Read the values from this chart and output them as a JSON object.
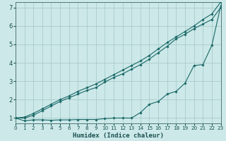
{
  "xlabel": "Humidex (Indice chaleur)",
  "background_color": "#cce8e8",
  "grid_color": "#aacccc",
  "line_color": "#1a6868",
  "x": [
    0,
    1,
    2,
    3,
    4,
    5,
    6,
    7,
    8,
    9,
    10,
    11,
    12,
    13,
    14,
    15,
    16,
    17,
    18,
    19,
    20,
    21,
    22,
    23
  ],
  "line1": [
    1.0,
    0.85,
    0.9,
    0.9,
    0.88,
    0.9,
    0.9,
    0.92,
    0.92,
    0.92,
    0.97,
    1.0,
    1.0,
    1.0,
    1.3,
    1.75,
    1.9,
    2.3,
    2.45,
    2.9,
    3.85,
    3.9,
    4.95,
    7.1
  ],
  "line2": [
    1.0,
    1.0,
    1.15,
    1.4,
    1.65,
    1.9,
    2.1,
    2.3,
    2.5,
    2.65,
    2.95,
    3.2,
    3.4,
    3.65,
    3.9,
    4.2,
    4.55,
    4.9,
    5.3,
    5.55,
    5.85,
    6.1,
    6.35,
    7.0
  ],
  "line3": [
    1.0,
    1.05,
    1.25,
    1.5,
    1.75,
    2.0,
    2.2,
    2.45,
    2.65,
    2.85,
    3.1,
    3.35,
    3.6,
    3.85,
    4.1,
    4.4,
    4.75,
    5.1,
    5.4,
    5.7,
    6.0,
    6.35,
    6.65,
    7.3
  ],
  "xlim": [
    0,
    23
  ],
  "ylim": [
    0.7,
    7.3
  ],
  "yticks": [
    1,
    2,
    3,
    4,
    5,
    6,
    7
  ],
  "xticks": [
    0,
    1,
    2,
    3,
    4,
    5,
    6,
    7,
    8,
    9,
    10,
    11,
    12,
    13,
    14,
    15,
    16,
    17,
    18,
    19,
    20,
    21,
    22,
    23
  ],
  "xlabel_fontsize": 6.5,
  "tick_fontsize_x": 5.2,
  "tick_fontsize_y": 6.0
}
